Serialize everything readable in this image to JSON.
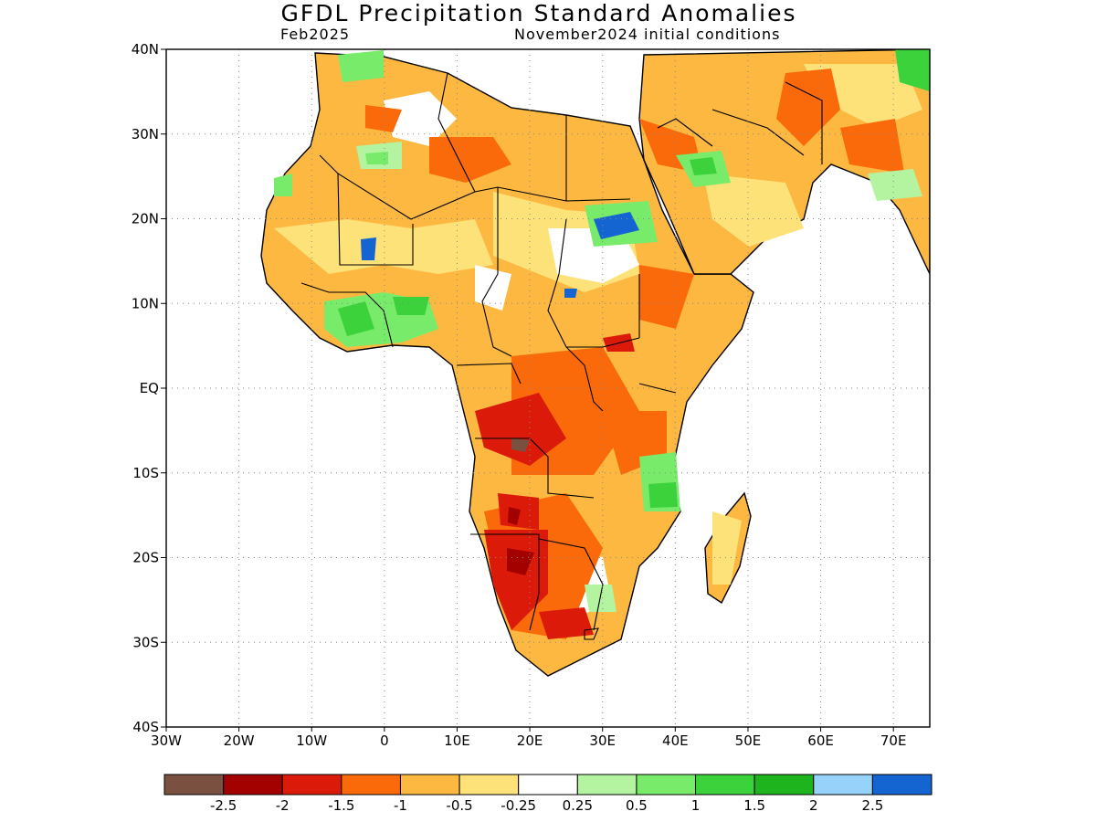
{
  "title": "GFDL Precipitation Standard Anomalies",
  "subtitle_left": "Feb2025",
  "subtitle_right": "November2024 initial conditions",
  "map": {
    "lon_range": [
      -30,
      75
    ],
    "lat_range": [
      -40,
      40
    ],
    "lat_labels": [
      "40N",
      "30N",
      "20N",
      "10N",
      "EQ",
      "10S",
      "20S",
      "30S",
      "40S"
    ],
    "lon_labels": [
      "30W",
      "20W",
      "10W",
      "0",
      "10E",
      "20E",
      "30E",
      "40E",
      "50E",
      "60E",
      "70E"
    ],
    "gridlines": "dotted"
  },
  "legend": {
    "colors": [
      "#7a5040",
      "#a30000",
      "#dc1a0a",
      "#fa6a0a",
      "#fcb840",
      "#fde27a",
      "#ffffff",
      "#b4f4a0",
      "#78ec6a",
      "#3cd23c",
      "#1eb41e",
      "#96d2fa",
      "#1464d2"
    ],
    "labels": [
      "-2.5",
      "-2",
      "-1.5",
      "-1",
      "-0.5",
      "-0.25",
      "0.25",
      "0.5",
      "1",
      "1.5",
      "2",
      "2.5"
    ]
  }
}
